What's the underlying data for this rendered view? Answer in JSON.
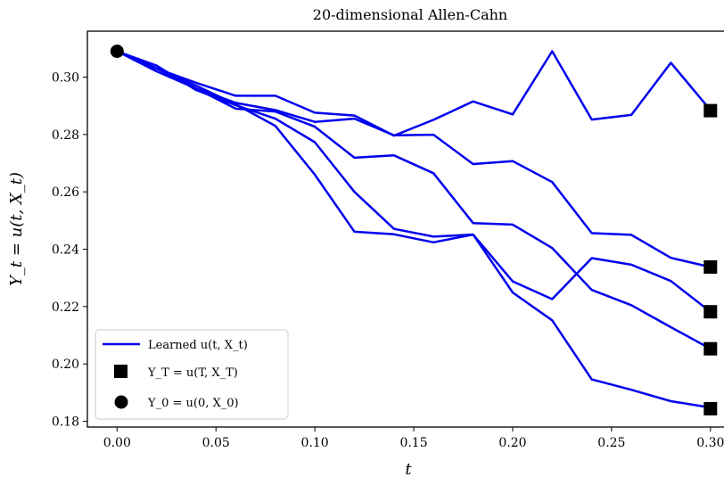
{
  "chart_data": {
    "type": "line",
    "title": "20-dimensional Allen-Cahn",
    "xlabel": "t",
    "ylabel": "Y_t = u(t, X_t)",
    "xlim": [
      -0.015,
      0.31
    ],
    "ylim": [
      0.178,
      0.316
    ],
    "x_ticks": [
      "0.00",
      "0.05",
      "0.10",
      "0.15",
      "0.20",
      "0.25",
      "0.30"
    ],
    "y_ticks": [
      "0.18",
      "0.20",
      "0.22",
      "0.24",
      "0.26",
      "0.28",
      "0.30"
    ],
    "grid": false,
    "legend_position": "lower-left",
    "colors": {
      "line": "#0000ee",
      "marker": "#000000"
    },
    "x": [
      0.0,
      0.02,
      0.04,
      0.06,
      0.08,
      0.1,
      0.12,
      0.14,
      0.16,
      0.18,
      0.2,
      0.22,
      0.24,
      0.26,
      0.28,
      0.3
    ],
    "series": [
      {
        "values": [
          0.309,
          0.303,
          0.298,
          0.2935,
          0.2935,
          0.2876,
          0.2866,
          0.2796,
          0.2851,
          0.2915,
          0.287,
          0.309,
          0.2852,
          0.2868,
          0.305,
          0.2885
        ]
      },
      {
        "values": [
          0.309,
          0.303,
          0.296,
          0.291,
          0.2885,
          0.2844,
          0.2855,
          0.2797,
          0.2799,
          0.2697,
          0.2707,
          0.2634,
          0.2456,
          0.245,
          0.237,
          0.2338
        ]
      },
      {
        "values": [
          0.309,
          0.302,
          0.296,
          0.289,
          0.288,
          0.2827,
          0.2719,
          0.2727,
          0.2665,
          0.2491,
          0.2486,
          0.2404,
          0.2258,
          0.2205,
          0.2128,
          0.2053
        ]
      },
      {
        "values": [
          0.309,
          0.304,
          0.2955,
          0.2902,
          0.2855,
          0.2773,
          0.26,
          0.2471,
          0.2444,
          0.2451,
          0.2288,
          0.2226,
          0.2369,
          0.2346,
          0.2289,
          0.2182
        ]
      },
      {
        "values": [
          0.309,
          0.303,
          0.297,
          0.2905,
          0.283,
          0.266,
          0.2461,
          0.2452,
          0.2424,
          0.2451,
          0.2249,
          0.2152,
          0.1946,
          0.191,
          0.187,
          0.1848
        ]
      }
    ],
    "initial_point": {
      "x": 0.0,
      "y": 0.309
    },
    "terminal_points": {
      "x": 0.3,
      "y": [
        0.2883,
        0.2338,
        0.2182,
        0.2053,
        0.1844
      ]
    },
    "legend": [
      {
        "label": "Learned u(t, X_t)",
        "kind": "line"
      },
      {
        "label": "Y_T = u(T, X_T)",
        "kind": "square"
      },
      {
        "label": "Y_0 = u(0, X_0)",
        "kind": "circle"
      }
    ]
  }
}
